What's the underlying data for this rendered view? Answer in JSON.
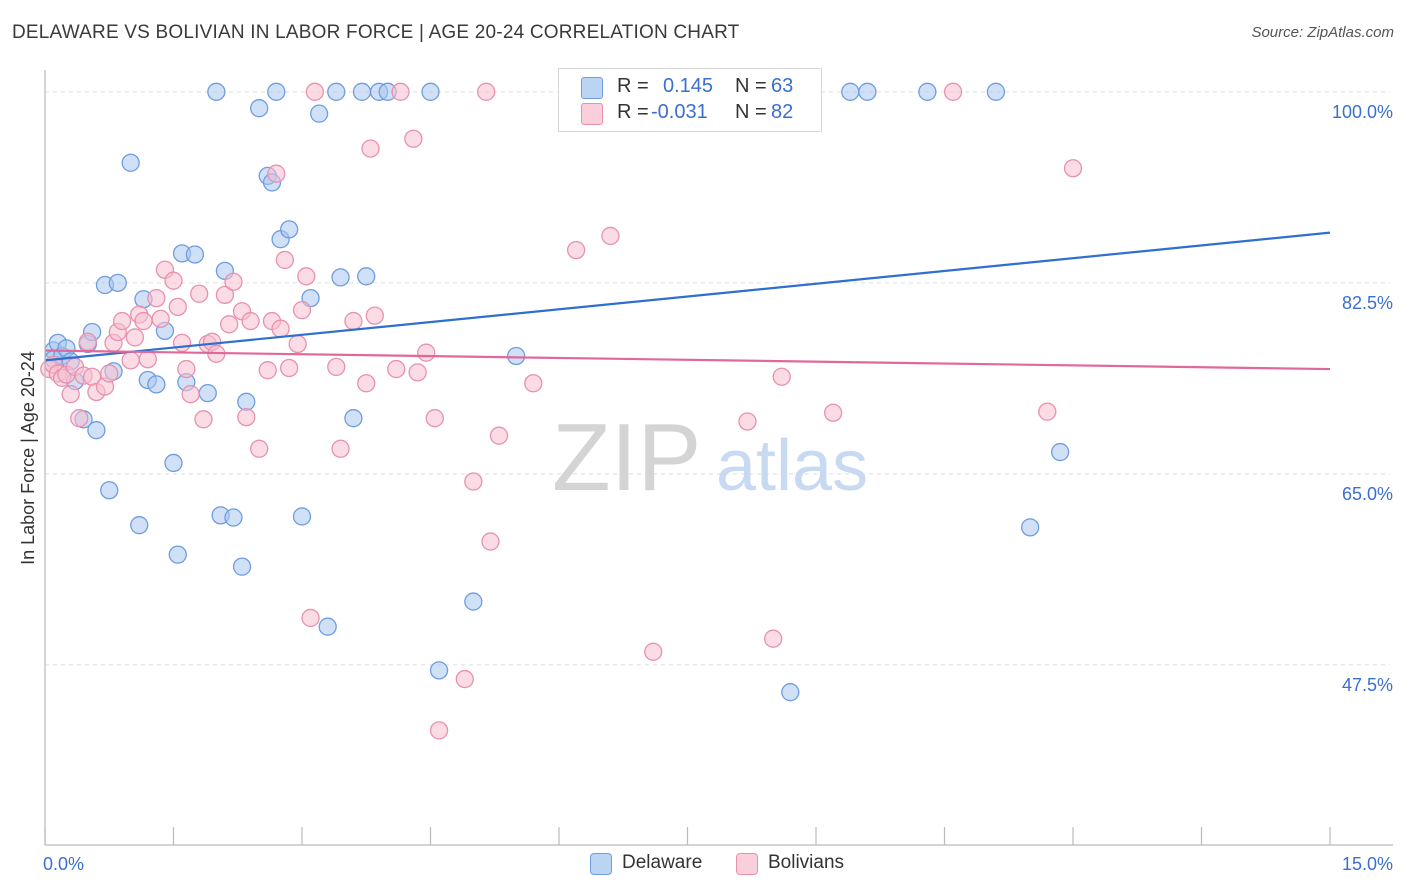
{
  "header": {
    "title": "DELAWARE VS BOLIVIAN IN LABOR FORCE | AGE 20-24 CORRELATION CHART",
    "source": "Source: ZipAtlas.com"
  },
  "watermark": {
    "zip": "ZIP",
    "atlas": "atlas"
  },
  "colors": {
    "delaware_fill": "#a9c7f0",
    "delaware_stroke": "#6f9de0",
    "delaware_line": "#2f6fcf",
    "bolivian_fill": "#f7bfd0",
    "bolivian_stroke": "#e891ae",
    "bolivian_line": "#e0689a",
    "axis_label": "#3a6fcf",
    "grid": "#dddddd"
  },
  "legend": {
    "rows": [
      {
        "r_label": "R = ",
        "r_value": "0.145",
        "n_label": "N = ",
        "n_value": "63"
      },
      {
        "r_label": "R = ",
        "r_value": "-0.031",
        "n_label": "N = ",
        "n_value": "82"
      }
    ]
  },
  "bottom_legend": {
    "delaware": "Delaware",
    "bolivians": "Bolivians"
  },
  "chart_data": {
    "type": "scatter",
    "title": "DELAWARE VS BOLIVIAN IN LABOR FORCE | AGE 20-24 CORRELATION CHART",
    "xlabel": "",
    "ylabel": "In Labor Force | Age 20-24",
    "xlim": [
      0,
      15
    ],
    "ylim": [
      31,
      102
    ],
    "x_tick_labels": [
      "0.0%",
      "15.0%"
    ],
    "y_ticks": [
      47.5,
      65.0,
      82.5,
      100.0
    ],
    "y_tick_labels": [
      "47.5%",
      "65.0%",
      "82.5%",
      "100.0%"
    ],
    "grid": true,
    "legend_position": "top-center",
    "series": [
      {
        "name": "Delaware",
        "r": 0.145,
        "n": 63,
        "trend": {
          "x": [
            0,
            15
          ],
          "y": [
            75.4,
            87.1
          ]
        },
        "points": [
          [
            0.1,
            76.3
          ],
          [
            0.1,
            75.5
          ],
          [
            0.15,
            77.0
          ],
          [
            0.2,
            75.8
          ],
          [
            0.25,
            76.5
          ],
          [
            0.3,
            75.3
          ],
          [
            0.35,
            73.5
          ],
          [
            0.5,
            76.9
          ],
          [
            0.55,
            78.0
          ],
          [
            0.6,
            69.0
          ],
          [
            0.7,
            82.3
          ],
          [
            0.8,
            74.4
          ],
          [
            0.85,
            82.5
          ],
          [
            0.75,
            63.5
          ],
          [
            1.0,
            93.5
          ],
          [
            1.1,
            60.3
          ],
          [
            1.15,
            81.0
          ],
          [
            1.2,
            73.6
          ],
          [
            1.3,
            73.2
          ],
          [
            1.4,
            78.1
          ],
          [
            1.5,
            66.0
          ],
          [
            1.55,
            57.6
          ],
          [
            1.6,
            85.2
          ],
          [
            1.65,
            73.4
          ],
          [
            1.75,
            85.1
          ],
          [
            1.9,
            72.4
          ],
          [
            2.0,
            100.0
          ],
          [
            2.05,
            61.2
          ],
          [
            2.1,
            83.6
          ],
          [
            2.2,
            61.0
          ],
          [
            2.3,
            56.5
          ],
          [
            2.35,
            71.6
          ],
          [
            2.5,
            98.5
          ],
          [
            2.6,
            92.3
          ],
          [
            2.65,
            91.7
          ],
          [
            2.7,
            100.0
          ],
          [
            2.75,
            86.5
          ],
          [
            2.85,
            87.4
          ],
          [
            3.0,
            61.1
          ],
          [
            3.1,
            81.1
          ],
          [
            3.2,
            98.0
          ],
          [
            3.3,
            51.0
          ],
          [
            3.4,
            100.0
          ],
          [
            3.45,
            83.0
          ],
          [
            3.6,
            70.1
          ],
          [
            3.7,
            100.0
          ],
          [
            3.75,
            83.1
          ],
          [
            3.9,
            100.0
          ],
          [
            4.0,
            100.0
          ],
          [
            4.5,
            100.0
          ],
          [
            4.6,
            47.0
          ],
          [
            5.0,
            53.3
          ],
          [
            5.5,
            75.8
          ],
          [
            7.5,
            100.0
          ],
          [
            7.8,
            100.0
          ],
          [
            8.7,
            45.0
          ],
          [
            9.4,
            100.0
          ],
          [
            9.6,
            100.0
          ],
          [
            10.3,
            100.0
          ],
          [
            11.1,
            100.0
          ],
          [
            11.5,
            60.1
          ],
          [
            11.85,
            67.0
          ],
          [
            0.45,
            70.0
          ]
        ]
      },
      {
        "name": "Bolivians",
        "r": -0.031,
        "n": 82,
        "trend": {
          "x": [
            0,
            15
          ],
          "y": [
            76.3,
            74.6
          ]
        },
        "points": [
          [
            0.05,
            74.6
          ],
          [
            0.1,
            75.0
          ],
          [
            0.15,
            74.2
          ],
          [
            0.2,
            73.8
          ],
          [
            0.25,
            74.1
          ],
          [
            0.3,
            72.3
          ],
          [
            0.35,
            74.8
          ],
          [
            0.4,
            70.1
          ],
          [
            0.45,
            74.0
          ],
          [
            0.5,
            77.1
          ],
          [
            0.55,
            73.9
          ],
          [
            0.6,
            72.5
          ],
          [
            0.7,
            73.0
          ],
          [
            0.75,
            74.2
          ],
          [
            0.8,
            77.0
          ],
          [
            0.85,
            78.0
          ],
          [
            0.9,
            79.0
          ],
          [
            1.0,
            75.4
          ],
          [
            1.05,
            77.5
          ],
          [
            1.1,
            79.6
          ],
          [
            1.15,
            79.0
          ],
          [
            1.2,
            75.5
          ],
          [
            1.3,
            81.1
          ],
          [
            1.35,
            79.2
          ],
          [
            1.4,
            83.7
          ],
          [
            1.5,
            82.7
          ],
          [
            1.55,
            80.3
          ],
          [
            1.6,
            77.0
          ],
          [
            1.65,
            74.6
          ],
          [
            1.7,
            72.3
          ],
          [
            1.8,
            81.5
          ],
          [
            1.85,
            70.0
          ],
          [
            1.9,
            76.9
          ],
          [
            1.95,
            77.1
          ],
          [
            2.0,
            76.0
          ],
          [
            2.1,
            81.4
          ],
          [
            2.15,
            78.7
          ],
          [
            2.2,
            82.6
          ],
          [
            2.3,
            79.9
          ],
          [
            2.35,
            70.2
          ],
          [
            2.4,
            79.0
          ],
          [
            2.5,
            67.3
          ],
          [
            2.6,
            74.5
          ],
          [
            2.65,
            79.0
          ],
          [
            2.7,
            92.5
          ],
          [
            2.75,
            78.3
          ],
          [
            2.8,
            84.6
          ],
          [
            2.85,
            74.7
          ],
          [
            2.95,
            76.9
          ],
          [
            3.0,
            80.0
          ],
          [
            3.05,
            83.1
          ],
          [
            3.1,
            51.8
          ],
          [
            3.15,
            100.0
          ],
          [
            3.4,
            74.8
          ],
          [
            3.45,
            67.3
          ],
          [
            3.6,
            79.0
          ],
          [
            3.75,
            73.3
          ],
          [
            3.8,
            94.8
          ],
          [
            3.85,
            79.5
          ],
          [
            4.1,
            74.6
          ],
          [
            4.15,
            100.0
          ],
          [
            4.3,
            95.7
          ],
          [
            4.35,
            74.3
          ],
          [
            4.45,
            76.1
          ],
          [
            4.55,
            70.1
          ],
          [
            4.6,
            41.5
          ],
          [
            4.9,
            46.2
          ],
          [
            5.0,
            64.3
          ],
          [
            5.15,
            100.0
          ],
          [
            5.2,
            58.8
          ],
          [
            5.3,
            68.5
          ],
          [
            5.7,
            73.3
          ],
          [
            6.2,
            85.5
          ],
          [
            6.6,
            86.8
          ],
          [
            7.1,
            48.7
          ],
          [
            8.2,
            69.8
          ],
          [
            8.5,
            49.9
          ],
          [
            8.6,
            73.9
          ],
          [
            9.2,
            70.6
          ],
          [
            10.6,
            100.0
          ],
          [
            11.7,
            70.7
          ],
          [
            12.0,
            93.0
          ]
        ]
      }
    ]
  }
}
